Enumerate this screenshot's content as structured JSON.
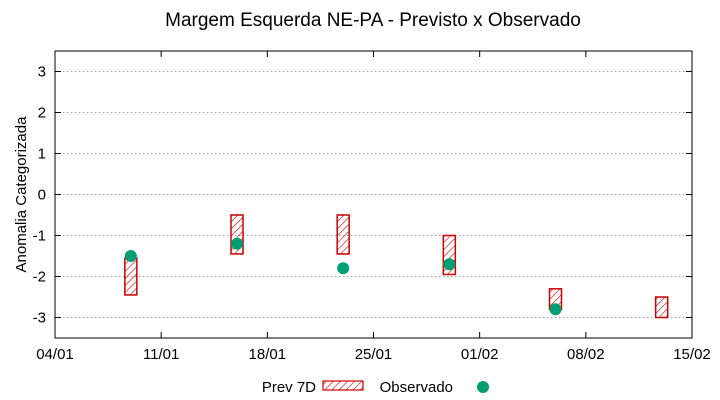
{
  "chart_data": {
    "type": "range-bar-with-scatter",
    "title": "Margem Esquerda NE-PA - Previsto x Observado",
    "xlabel": "",
    "ylabel": "Anomalia Categorizada",
    "ylim": [
      -3.5,
      3.5
    ],
    "yticks": [
      -3,
      -2,
      -1,
      0,
      1,
      2,
      3
    ],
    "xlim_days": [
      0,
      42
    ],
    "x_tick_labels": [
      "04/01",
      "11/01",
      "18/01",
      "25/01",
      "01/02",
      "08/02",
      "15/02"
    ],
    "x_tick_days": [
      0,
      7,
      14,
      21,
      28,
      35,
      42
    ],
    "grid": true,
    "legend_position": "bottom",
    "series": [
      {
        "name": "Prev 7D",
        "style": "hatched-red-box",
        "points": [
          {
            "day": 5,
            "low": -2.45,
            "high": -1.55
          },
          {
            "day": 12,
            "low": -1.45,
            "high": -0.5
          },
          {
            "day": 19,
            "low": -1.45,
            "high": -0.5
          },
          {
            "day": 26,
            "low": -1.95,
            "high": -1.0
          },
          {
            "day": 33,
            "low": -2.8,
            "high": -2.3
          },
          {
            "day": 40,
            "low": -3.0,
            "high": -2.5
          }
        ]
      },
      {
        "name": "Observado",
        "style": "green-dot",
        "points": [
          {
            "day": 5,
            "y": -1.5
          },
          {
            "day": 12,
            "y": -1.2
          },
          {
            "day": 19,
            "y": -1.8
          },
          {
            "day": 26,
            "y": -1.7
          },
          {
            "day": 33,
            "y": -2.8
          }
        ]
      }
    ],
    "colors": {
      "box": "#cc0000",
      "dot": "#009e73",
      "grid": "#a0a0a0",
      "axis": "#000000"
    }
  }
}
